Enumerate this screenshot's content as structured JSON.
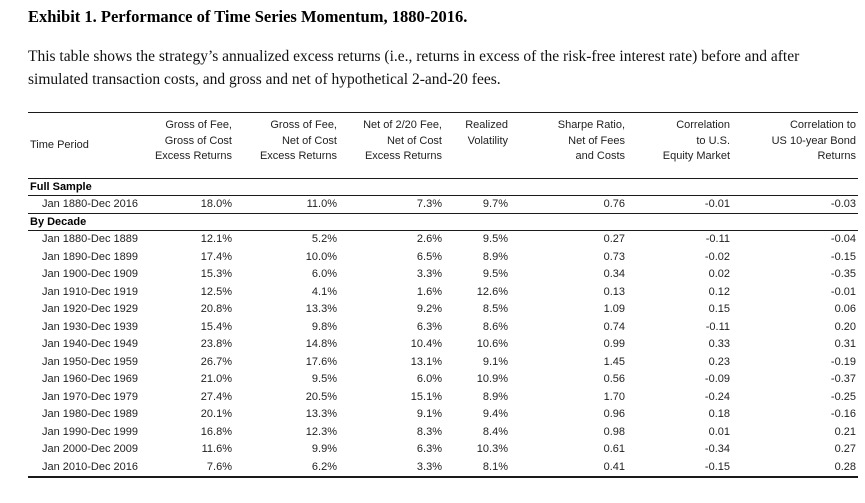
{
  "page": {
    "title": "Exhibit 1. Performance of Time Series Momentum, 1880-2016.",
    "description": "This table shows the strategy’s annualized excess returns (i.e., returns in excess of the risk-free interest rate) before and after simulated transaction costs, and gross and net of hypothetical 2-and-20 fees."
  },
  "table": {
    "columns": [
      {
        "label": "Time Period"
      },
      {
        "label": "Gross of Fee,\nGross of Cost\nExcess Returns"
      },
      {
        "label": "Gross of Fee,\nNet of Cost\nExcess Returns"
      },
      {
        "label": "Net of 2/20 Fee,\nNet of Cost\nExcess Returns"
      },
      {
        "label": "Realized\nVolatility"
      },
      {
        "label": "Sharpe Ratio,\nNet of Fees\nand Costs"
      },
      {
        "label": "Correlation\nto U.S.\nEquity Market"
      },
      {
        "label": "Correlation to\nUS 10-year Bond\nReturns"
      }
    ],
    "sections": [
      {
        "label": "Full Sample",
        "rows": [
          {
            "period": "Jan 1880-Dec 2016",
            "values": [
              "18.0%",
              "11.0%",
              "7.3%",
              "9.7%",
              "0.76",
              "-0.01",
              "-0.03"
            ]
          }
        ]
      },
      {
        "label": "By Decade",
        "rows": [
          {
            "period": "Jan 1880-Dec 1889",
            "values": [
              "12.1%",
              "5.2%",
              "2.6%",
              "9.5%",
              "0.27",
              "-0.11",
              "-0.04"
            ]
          },
          {
            "period": "Jan 1890-Dec 1899",
            "values": [
              "17.4%",
              "10.0%",
              "6.5%",
              "8.9%",
              "0.73",
              "-0.02",
              "-0.15"
            ]
          },
          {
            "period": "Jan 1900-Dec 1909",
            "values": [
              "15.3%",
              "6.0%",
              "3.3%",
              "9.5%",
              "0.34",
              "0.02",
              "-0.35"
            ]
          },
          {
            "period": "Jan 1910-Dec 1919",
            "values": [
              "12.5%",
              "4.1%",
              "1.6%",
              "12.6%",
              "0.13",
              "0.12",
              "-0.01"
            ]
          },
          {
            "period": "Jan 1920-Dec 1929",
            "values": [
              "20.8%",
              "13.3%",
              "9.2%",
              "8.5%",
              "1.09",
              "0.15",
              "0.06"
            ]
          },
          {
            "period": "Jan 1930-Dec 1939",
            "values": [
              "15.4%",
              "9.8%",
              "6.3%",
              "8.6%",
              "0.74",
              "-0.11",
              "0.20"
            ]
          },
          {
            "period": "Jan 1940-Dec 1949",
            "values": [
              "23.8%",
              "14.8%",
              "10.4%",
              "10.6%",
              "0.99",
              "0.33",
              "0.31"
            ]
          },
          {
            "period": "Jan 1950-Dec 1959",
            "values": [
              "26.7%",
              "17.6%",
              "13.1%",
              "9.1%",
              "1.45",
              "0.23",
              "-0.19"
            ]
          },
          {
            "period": "Jan 1960-Dec 1969",
            "values": [
              "21.0%",
              "9.5%",
              "6.0%",
              "10.9%",
              "0.56",
              "-0.09",
              "-0.37"
            ]
          },
          {
            "period": "Jan 1970-Dec 1979",
            "values": [
              "27.4%",
              "20.5%",
              "15.1%",
              "8.9%",
              "1.70",
              "-0.24",
              "-0.25"
            ]
          },
          {
            "period": "Jan 1980-Dec 1989",
            "values": [
              "20.1%",
              "13.3%",
              "9.1%",
              "9.4%",
              "0.96",
              "0.18",
              "-0.16"
            ]
          },
          {
            "period": "Jan 1990-Dec 1999",
            "values": [
              "16.8%",
              "12.3%",
              "8.3%",
              "8.4%",
              "0.98",
              "0.01",
              "0.21"
            ]
          },
          {
            "period": "Jan 2000-Dec 2009",
            "values": [
              "11.6%",
              "9.9%",
              "6.3%",
              "10.3%",
              "0.61",
              "-0.34",
              "0.27"
            ]
          },
          {
            "period": "Jan 2010-Dec 2016",
            "values": [
              "7.6%",
              "6.2%",
              "3.3%",
              "8.1%",
              "0.41",
              "-0.15",
              "0.28"
            ]
          }
        ]
      }
    ]
  }
}
